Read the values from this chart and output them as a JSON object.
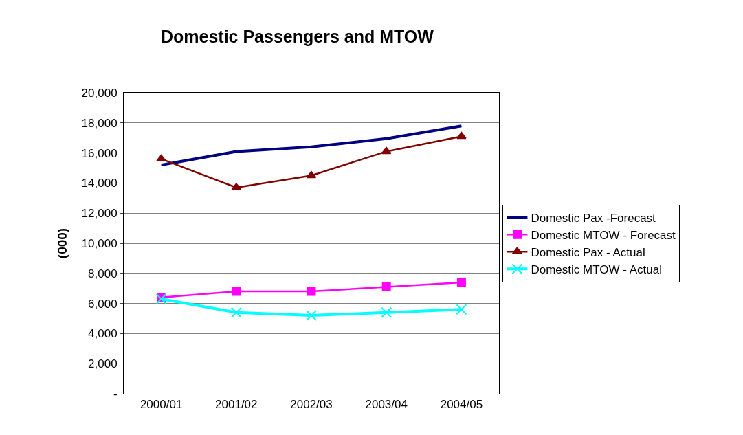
{
  "chart_data": {
    "type": "line",
    "title": "Domestic Passengers and MTOW",
    "ylabel": "(000)",
    "categories": [
      "2000/01",
      "2001/02",
      "2002/03",
      "2003/04",
      "2004/05"
    ],
    "series": [
      {
        "name": "Domestic Pax -Forecast",
        "color": "#000080",
        "marker": "none",
        "values": [
          15200,
          16100,
          16400,
          16950,
          17800
        ]
      },
      {
        "name": "Domestic MTOW - Forecast",
        "color": "#ff00ff",
        "marker": "square",
        "values": [
          6400,
          6800,
          6800,
          7100,
          7400
        ]
      },
      {
        "name": "Domestic Pax - Actual",
        "color": "#800000",
        "marker": "triangle",
        "values": [
          15600,
          13700,
          14500,
          16100,
          17100
        ]
      },
      {
        "name": "Domestic MTOW - Actual",
        "color": "#00ffff",
        "marker": "cross",
        "values": [
          6300,
          5400,
          5200,
          5400,
          5600
        ]
      }
    ],
    "ylim": [
      0,
      20000
    ],
    "yticks": [
      {
        "value": 0,
        "label": "-"
      },
      {
        "value": 2000,
        "label": "2,000"
      },
      {
        "value": 4000,
        "label": "4,000"
      },
      {
        "value": 6000,
        "label": "6,000"
      },
      {
        "value": 8000,
        "label": "8,000"
      },
      {
        "value": 10000,
        "label": "10,000"
      },
      {
        "value": 12000,
        "label": "12,000"
      },
      {
        "value": 14000,
        "label": "14,000"
      },
      {
        "value": 16000,
        "label": "16,000"
      },
      {
        "value": 18000,
        "label": "18,000"
      },
      {
        "value": 20000,
        "label": "20,000"
      }
    ],
    "grid": "y",
    "legend": "right",
    "line_style": "solid"
  }
}
